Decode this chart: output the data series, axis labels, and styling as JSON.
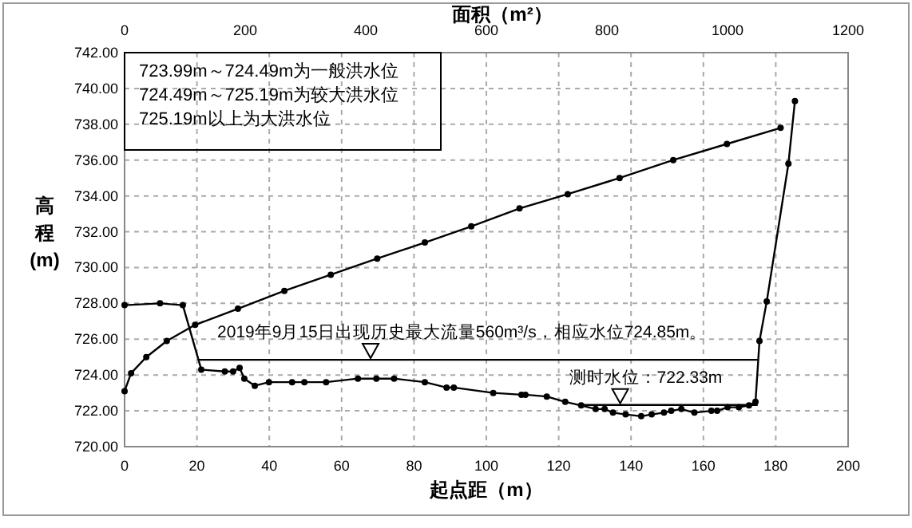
{
  "chart_data": {
    "type": "line",
    "xlabel": "起点距（m）",
    "x2label": "面积（m²）",
    "ylabel": "高程(m)",
    "xlim": [
      0,
      200
    ],
    "xticks": [
      0,
      20,
      40,
      60,
      80,
      100,
      120,
      140,
      160,
      180,
      200
    ],
    "x2lim": [
      0,
      1200
    ],
    "x2ticks": [
      0,
      200,
      400,
      600,
      800,
      1000,
      1200
    ],
    "ylim": [
      720,
      742
    ],
    "yticks": [
      {
        "value": 720,
        "label": "720.00"
      },
      {
        "value": 722,
        "label": "722.00"
      },
      {
        "value": 724,
        "label": "724.00"
      },
      {
        "value": 726,
        "label": "726.00"
      },
      {
        "value": 728,
        "label": "728.00"
      },
      {
        "value": 730,
        "label": "730.00"
      },
      {
        "value": 732,
        "label": "732.00"
      },
      {
        "value": 734,
        "label": "734.00"
      },
      {
        "value": 736,
        "label": "736.00"
      },
      {
        "value": 738,
        "label": "738.00"
      },
      {
        "value": 740,
        "label": "740.00"
      },
      {
        "value": 742,
        "label": "742.00"
      }
    ],
    "grid": true,
    "marker": "circle",
    "line_style": "solid",
    "series": [
      {
        "color": "#000000",
        "x": [
          0,
          9.8,
          16.1,
          21.2,
          27.7,
          30,
          31.8,
          33.1,
          36,
          39.9,
          46.3,
          49.7,
          55.7,
          64.5,
          69.6,
          74.5,
          83,
          89,
          91,
          101.9,
          109.7,
          110.8,
          116.7,
          121.8,
          126.2,
          130.2,
          132.7,
          135,
          138.5,
          142.8,
          145.7,
          149.1,
          151.1,
          153.9,
          157.5,
          162.2,
          163.8,
          166.7,
          169.8,
          172.6,
          174.4,
          175.5,
          177.5,
          183.5,
          185.3
        ],
        "values": [
          727.9,
          728.0,
          727.9,
          724.3,
          724.2,
          724.2,
          724.4,
          723.8,
          723.4,
          723.6,
          723.6,
          723.6,
          723.6,
          723.8,
          723.8,
          723.8,
          723.6,
          723.3,
          723.3,
          723.0,
          722.9,
          722.9,
          722.8,
          722.5,
          722.3,
          722.1,
          722.1,
          721.9,
          721.8,
          721.7,
          721.8,
          721.9,
          722.0,
          722.1,
          721.9,
          722.0,
          722.0,
          722.2,
          722.2,
          722.3,
          722.5,
          725.9,
          728.1,
          735.8,
          739.3
        ]
      },
      {
        "color": "#000000",
        "axis": "x2",
        "x": [
          0,
          10.8,
          36,
          70,
          117,
          188,
          265,
          342,
          419,
          498,
          575,
          655,
          735,
          821,
          910,
          999,
          1088
        ],
        "values": [
          723.1,
          724.1,
          725.0,
          725.9,
          726.8,
          727.7,
          728.7,
          729.6,
          730.5,
          731.4,
          732.3,
          733.3,
          734.1,
          735.0,
          736.0,
          736.9,
          737.8
        ]
      },
      {
        "color": "#000000",
        "marker": "none",
        "x": [
          20.5,
          175
        ],
        "values": [
          724.85,
          724.85
        ]
      },
      {
        "color": "#000000",
        "marker": "none",
        "x": [
          126,
          175
        ],
        "values": [
          722.33,
          722.33
        ]
      }
    ],
    "annotations": [
      {
        "text": "2019年9月15日出现历史最大流量560m³/s，相应水位724.85m。",
        "x": 68,
        "y": 724.85
      },
      {
        "text": "测时水位：722.33m",
        "x": 137,
        "y": 722.33
      },
      "723.99m～724.49m为一般洪水位",
      "724.49m～725.19m为较大洪水位",
      "725.19m以上为大洪水位"
    ]
  }
}
